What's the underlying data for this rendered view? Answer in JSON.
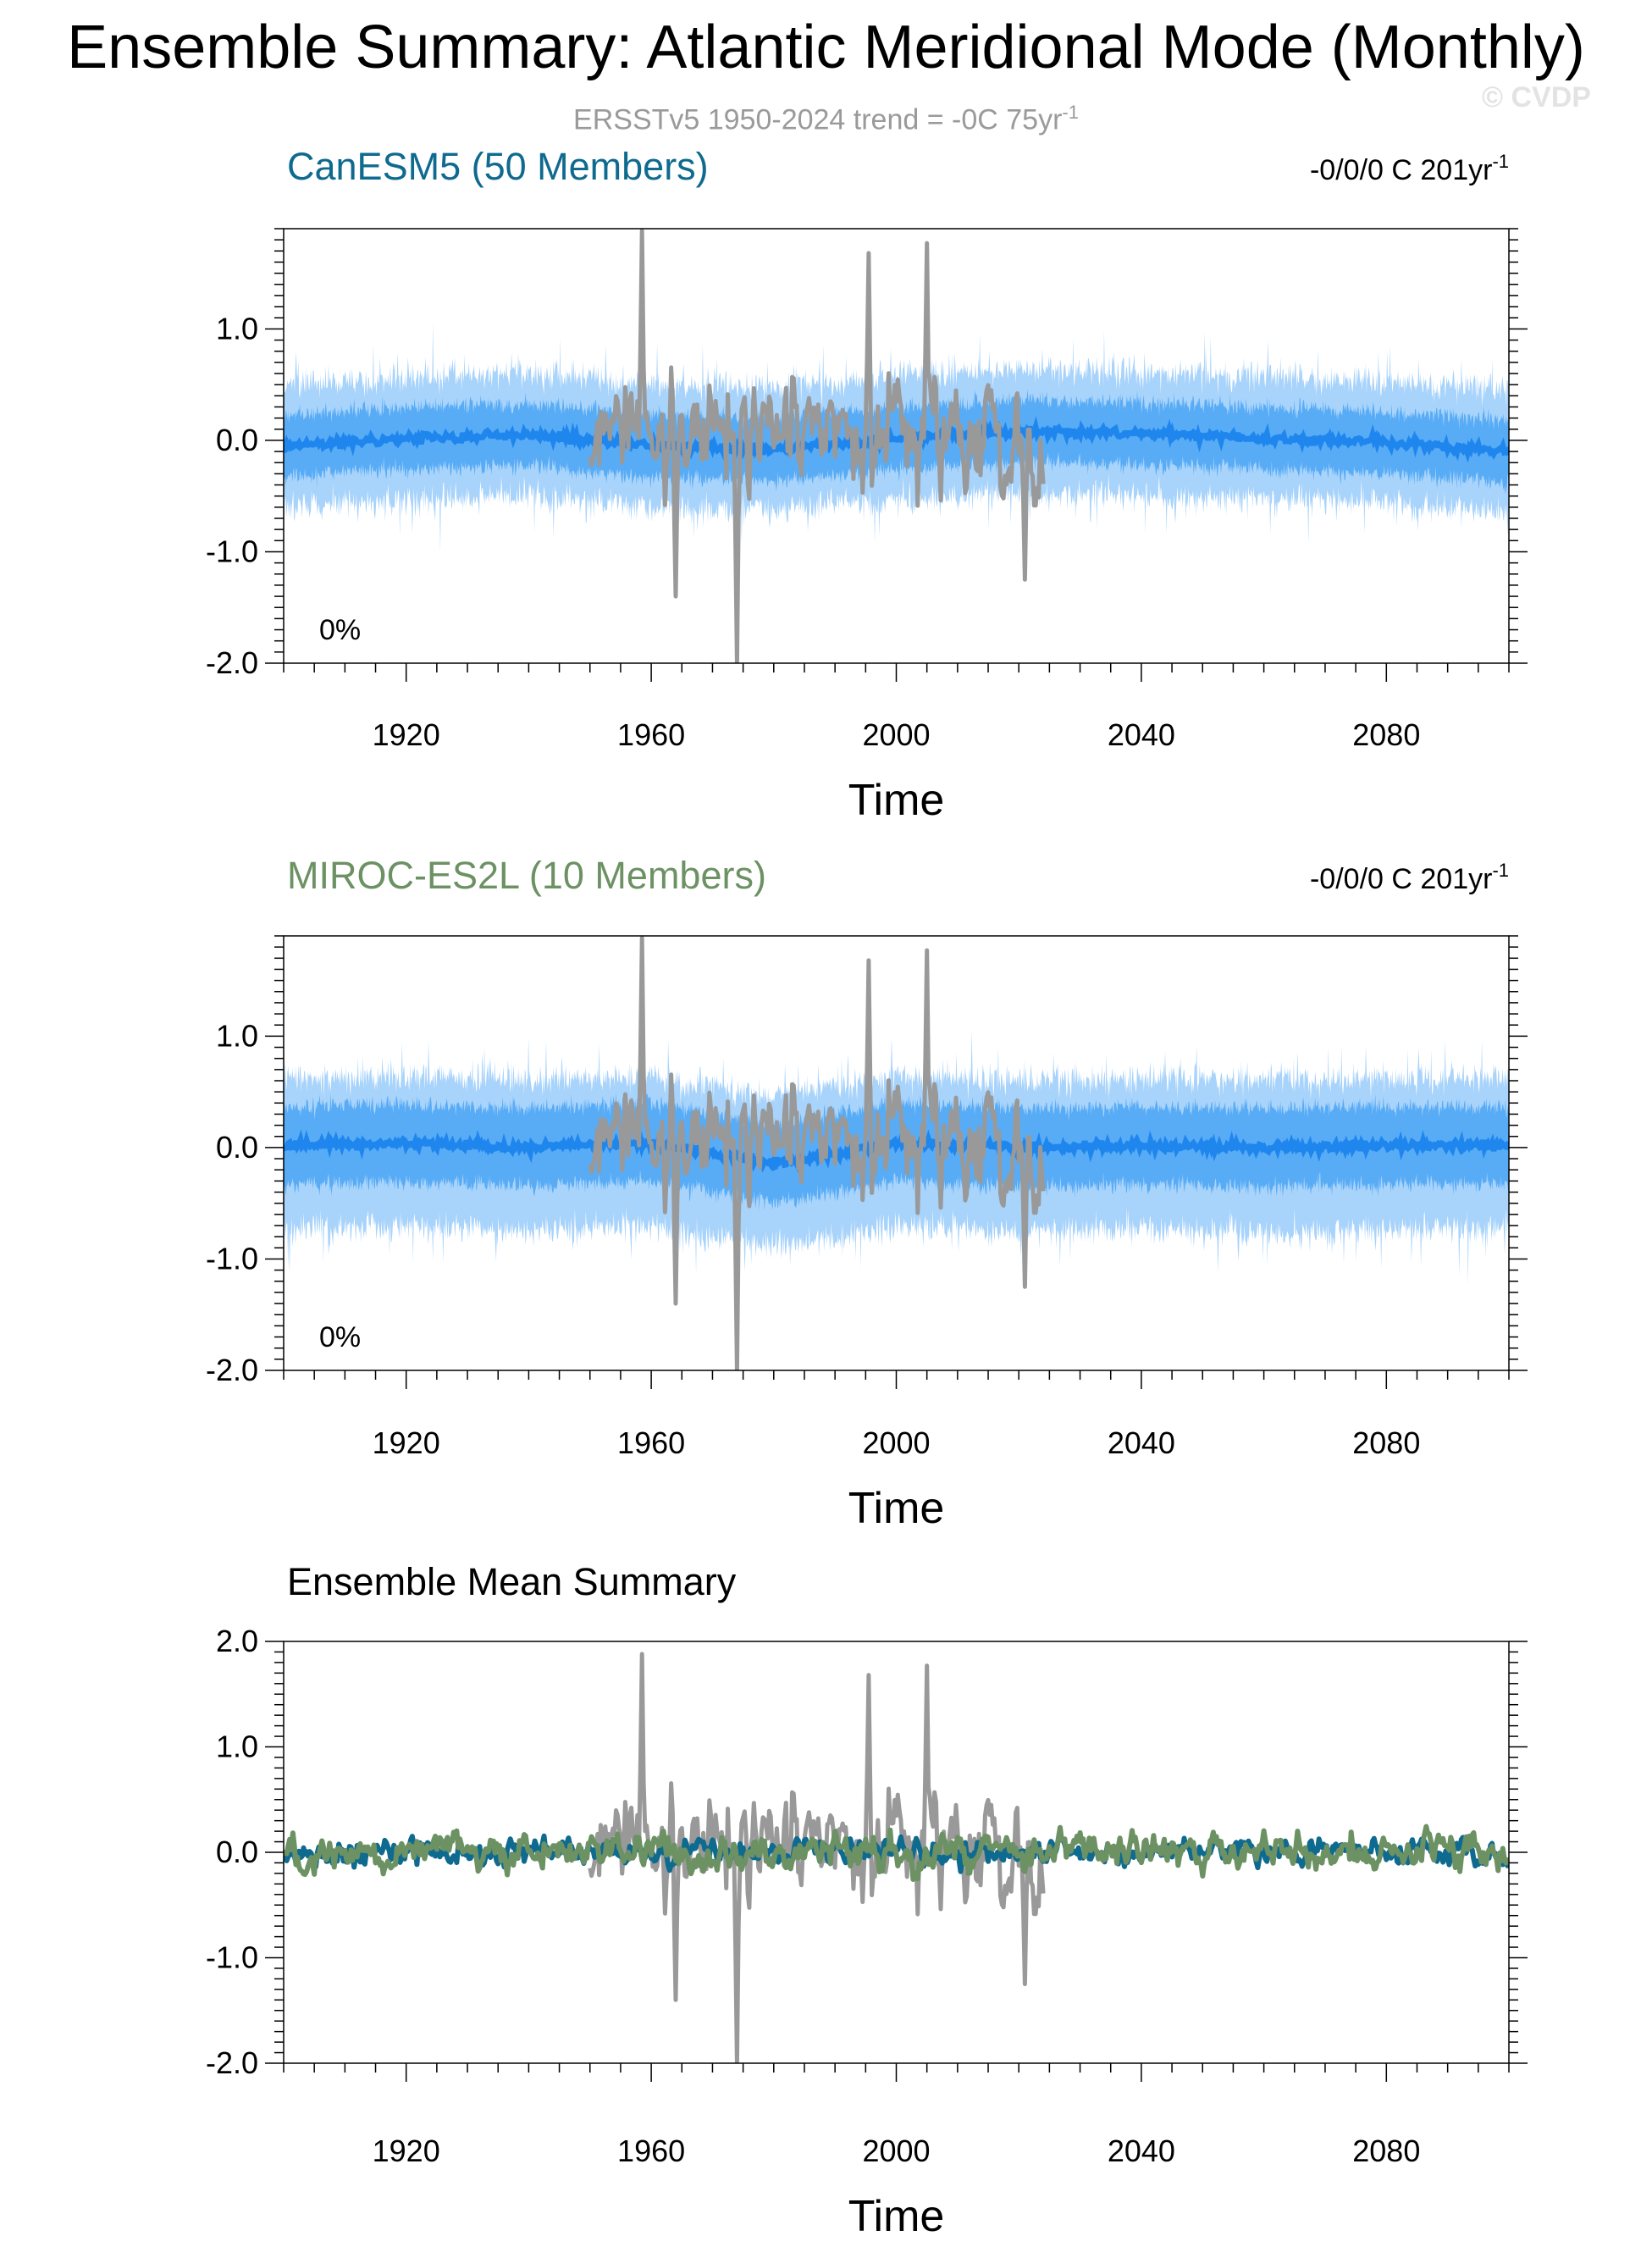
{
  "title": "Ensemble Summary: Atlantic Meridional Mode (Monthly)",
  "subtitle": {
    "text": "ERSST​v5 1950-2024 trend = -0C 75yr",
    "sup": "-1"
  },
  "watermark": "© CVDP",
  "colors": {
    "observations": "#999999",
    "canesm5": "#0f6a8f",
    "miroc": "#6c9163",
    "spread_outer": "#a8d3fb",
    "spread_inner": "#4aa4f5",
    "member_mean": "#1f86ee",
    "axis": "#000000"
  },
  "chart_data": [
    {
      "type": "area",
      "title": "CanESM5 (50 Members)",
      "title_color": "#0f6a8f",
      "trend_label": {
        "text": "-0/0/0 C 201yr",
        "sup": "-1"
      },
      "percent_label": "0%",
      "xlabel": "Time",
      "ylabel": "",
      "xlim": [
        1900,
        2100
      ],
      "ylim": [
        -2.0,
        1.9
      ],
      "x_ticks": [
        1920,
        1960,
        2000,
        2040,
        2080
      ],
      "y_ticks": [
        -2.0,
        -1.0,
        0.0,
        1.0
      ],
      "y_tick_labels": [
        "-2.0",
        "-1.0",
        "0.0",
        "1.0"
      ],
      "series": [
        {
          "role": "ensemble_spread",
          "x_range": [
            1900,
            2100
          ],
          "band_outer": [
            -0.55,
            0.55
          ],
          "band_inner": [
            -0.28,
            0.28
          ]
        },
        {
          "role": "ensemble_mean",
          "x": [
            1900,
            1920,
            1940,
            1960,
            1980,
            2000,
            2020,
            2040,
            2060,
            2080,
            2100
          ],
          "values": [
            -0.05,
            0.02,
            0.05,
            -0.05,
            -0.08,
            0.02,
            0.08,
            0.06,
            0.02,
            -0.02,
            -0.1
          ]
        },
        {
          "role": "observations",
          "x_range": [
            1950,
            2024
          ],
          "peaks": [
            {
              "x": 1958.5,
              "y": 1.88
            },
            {
              "x": 1974,
              "y": -1.99
            },
            {
              "x": 2005,
              "y": 1.77
            },
            {
              "x": 1995.5,
              "y": 1.68
            },
            {
              "x": 1964,
              "y": -1.4
            },
            {
              "x": 2021,
              "y": -1.25
            }
          ]
        }
      ]
    },
    {
      "type": "area",
      "title": "MIROC-ES2L (10 Members)",
      "title_color": "#6c9163",
      "trend_label": {
        "text": "-0/0/0 C 201yr",
        "sup": "-1"
      },
      "percent_label": "0%",
      "xlabel": "Time",
      "ylabel": "",
      "xlim": [
        1900,
        2100
      ],
      "ylim": [
        -2.0,
        1.9
      ],
      "x_ticks": [
        1920,
        1960,
        2000,
        2040,
        2080
      ],
      "y_ticks": [
        -2.0,
        -1.0,
        0.0,
        1.0
      ],
      "y_tick_labels": [
        "-2.0",
        "-1.0",
        "0.0",
        "1.0"
      ],
      "series": [
        {
          "role": "ensemble_spread",
          "x_range": [
            1900,
            2100
          ],
          "band_outer": [
            -0.75,
            0.6
          ],
          "band_inner": [
            -0.35,
            0.35
          ]
        },
        {
          "role": "ensemble_mean",
          "x": [
            1900,
            1920,
            1940,
            1960,
            1980,
            2000,
            2020,
            2040,
            2060,
            2080,
            2100
          ],
          "values": [
            0.02,
            0.04,
            0.0,
            0.05,
            -0.15,
            0.05,
            0.0,
            0.02,
            0.0,
            0.02,
            0.02
          ]
        },
        {
          "role": "observations",
          "x_range": [
            1950,
            2024
          ],
          "peaks": [
            {
              "x": 1958.5,
              "y": 1.88
            },
            {
              "x": 1974,
              "y": -1.99
            },
            {
              "x": 2005,
              "y": 1.77
            },
            {
              "x": 1995.5,
              "y": 1.68
            },
            {
              "x": 1964,
              "y": -1.4
            },
            {
              "x": 2021,
              "y": -1.25
            }
          ]
        }
      ]
    },
    {
      "type": "line",
      "title": "Ensemble Mean Summary",
      "xlabel": "Time",
      "ylabel": "",
      "xlim": [
        1900,
        2100
      ],
      "ylim": [
        -2.0,
        2.0
      ],
      "x_ticks": [
        1920,
        1960,
        2000,
        2040,
        2080
      ],
      "y_ticks": [
        -2.0,
        -1.0,
        0.0,
        1.0,
        2.0
      ],
      "y_tick_labels": [
        "-2.0",
        "-1.0",
        "0.0",
        "1.0",
        "2.0"
      ],
      "series": [
        {
          "role": "observations",
          "x_range": [
            1950,
            2024
          ],
          "peaks": [
            {
              "x": 1958.5,
              "y": 1.88
            },
            {
              "x": 1974,
              "y": -1.99
            },
            {
              "x": 2005,
              "y": 1.77
            },
            {
              "x": 1995.5,
              "y": 1.68
            },
            {
              "x": 1964,
              "y": -1.4
            },
            {
              "x": 2021,
              "y": -1.25
            }
          ]
        },
        {
          "role": "canesm5_mean",
          "x_range": [
            1900,
            2100
          ],
          "amplitude": 0.18
        },
        {
          "role": "miroc_mean",
          "x_range": [
            1900,
            2100
          ],
          "amplitude": 0.25
        }
      ]
    }
  ]
}
